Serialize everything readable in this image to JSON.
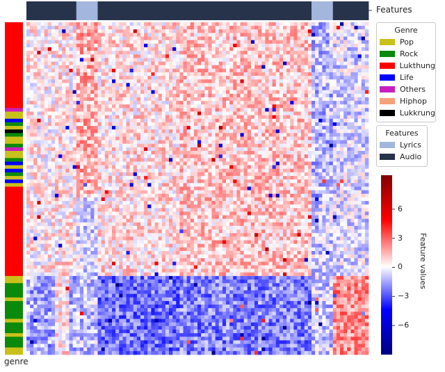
{
  "chart_data": {
    "type": "heatmap",
    "title": "",
    "col_annotation_label": "Features",
    "row_annotation_label": "genre",
    "feature_groups": [
      {
        "type": "Audio",
        "columns": 14
      },
      {
        "type": "Lyrics",
        "columns": 6
      },
      {
        "type": "Audio",
        "columns": 60
      },
      {
        "type": "Lyrics",
        "columns": 6
      },
      {
        "type": "Audio",
        "columns": 10
      }
    ],
    "genre_legend": {
      "title": "Genre",
      "items": [
        {
          "label": "Pop",
          "color": "#c9c11a"
        },
        {
          "label": "Rock",
          "color": "#0a8a0a"
        },
        {
          "label": "Lukthung",
          "color": "#ff0000"
        },
        {
          "label": "Life",
          "color": "#0000ff"
        },
        {
          "label": "Others",
          "color": "#c71fbf"
        },
        {
          "label": "Hiphop",
          "color": "#f5a07a"
        },
        {
          "label": "Lukkrung",
          "color": "#000000"
        }
      ]
    },
    "features_legend": {
      "title": "Features",
      "items": [
        {
          "label": "Lyrics",
          "color": "#a3b6dc"
        },
        {
          "label": "Audio",
          "color": "#27324b"
        }
      ]
    },
    "colorbar": {
      "label": "Feature values",
      "range": [
        -9,
        9.5
      ],
      "ticks": [
        -6,
        -3,
        0,
        3,
        6
      ],
      "tick_labels": [
        "−6",
        "−3",
        "0",
        "3",
        "6"
      ]
    },
    "row_groups": [
      {
        "genre": "Lukthung",
        "rows": 24
      },
      {
        "genre": "Others",
        "rows": 1
      },
      {
        "genre": "Pop",
        "rows": 2
      },
      {
        "genre": "Life",
        "rows": 1
      },
      {
        "genre": "Rock",
        "rows": 1
      },
      {
        "genre": "Pop",
        "rows": 1
      },
      {
        "genre": "Lukkrung",
        "rows": 1
      },
      {
        "genre": "Rock",
        "rows": 1
      },
      {
        "genre": "Pop",
        "rows": 2
      },
      {
        "genre": "Rock",
        "rows": 1
      },
      {
        "genre": "Others",
        "rows": 1
      },
      {
        "genre": "Pop",
        "rows": 2
      },
      {
        "genre": "Rock",
        "rows": 1
      },
      {
        "genre": "Life",
        "rows": 1
      },
      {
        "genre": "Pop",
        "rows": 1
      },
      {
        "genre": "Life",
        "rows": 1
      },
      {
        "genre": "Rock",
        "rows": 1
      },
      {
        "genre": "Pop",
        "rows": 1
      },
      {
        "genre": "Life",
        "rows": 1
      },
      {
        "genre": "Pop",
        "rows": 1
      },
      {
        "genre": "Lukthung",
        "rows": 25
      },
      {
        "genre": "Pop",
        "rows": 2
      },
      {
        "genre": "Rock",
        "rows": 4
      },
      {
        "genre": "Pop",
        "rows": 1
      },
      {
        "genre": "Rock",
        "rows": 5
      },
      {
        "genre": "Pop",
        "rows": 1
      },
      {
        "genre": "Rock",
        "rows": 3
      },
      {
        "genre": "Pop",
        "rows": 1
      },
      {
        "genre": "Rock",
        "rows": 3
      },
      {
        "genre": "Pop",
        "rows": 2
      }
    ]
  }
}
